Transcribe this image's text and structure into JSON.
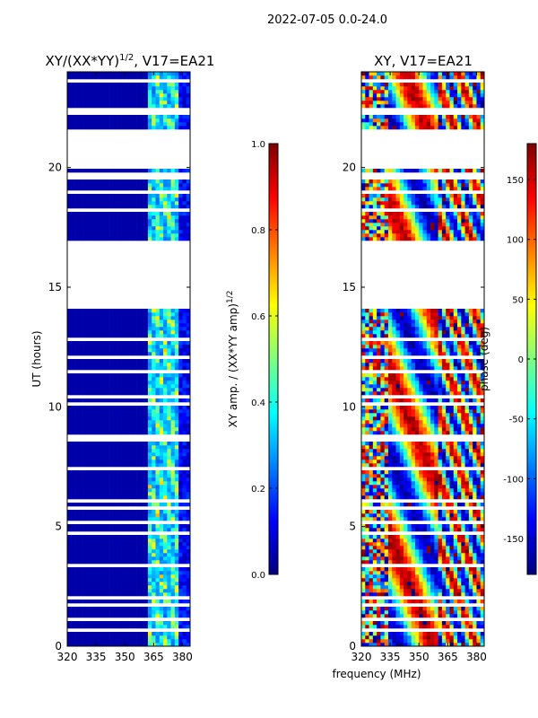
{
  "figure": {
    "suptitle": "2022-07-05 0.0-24.0",
    "xlabel": "frequency (MHz)"
  },
  "colors": {
    "jet": [
      "#00007f",
      "#0000ff",
      "#007fff",
      "#00ffff",
      "#7fff7f",
      "#ffff00",
      "#ff7f00",
      "#ff0000",
      "#7f0000"
    ],
    "background": "#ffffff",
    "frame": "#000000"
  },
  "chart_data": [
    {
      "type": "heatmap",
      "title": "XY/(XX*YY)^1/2, V17=EA21",
      "title_main": "XY/(XX*YY)",
      "title_sup": "1/2",
      "title_tail": ", V17=EA21",
      "xlabel": "frequency (MHz)",
      "ylabel": "UT (hours)",
      "xlim": [
        320,
        384
      ],
      "ylim": [
        0,
        24
      ],
      "xticks": [
        320,
        335,
        350,
        365,
        380
      ],
      "yticks": [
        0,
        5,
        10,
        15,
        20
      ],
      "colorbar": {
        "label": "XY amp. / (XX*YY amp)^1/2",
        "label_main": "XY amp. / (XX*YY amp)",
        "label_sup": "1/2",
        "range": [
          0.0,
          1.0
        ],
        "ticks": [
          "0.0",
          "0.2",
          "0.4",
          "0.6",
          "0.8",
          "1.0"
        ]
      },
      "flagged_ut_ranges": [
        [
          14.3,
          16.9
        ],
        [
          20.0,
          21.6
        ]
      ],
      "notes": "Mostly low amplitude (~0.05) with elevated amplitude (~0.3-0.6) in channels 362-378 MHz"
    },
    {
      "type": "heatmap",
      "title": "XY, V17=EA21",
      "xlabel": "frequency (MHz)",
      "ylabel": "",
      "xlim": [
        320,
        384
      ],
      "ylim": [
        0,
        24
      ],
      "xticks": [
        320,
        335,
        350,
        365,
        380
      ],
      "yticks": [
        0,
        5,
        10,
        15,
        20
      ],
      "colorbar": {
        "label": "phase (deg)",
        "range": [
          -180,
          180
        ],
        "ticks": [
          "-150",
          "-100",
          "-50",
          "0",
          "50",
          "100",
          "150"
        ]
      },
      "flagged_ut_ranges": [
        [
          14.3,
          16.9
        ],
        [
          20.0,
          21.6
        ]
      ],
      "notes": "Phase wraps across band; noisy at 320-335 MHz, coherent structure 335-360 MHz"
    }
  ]
}
